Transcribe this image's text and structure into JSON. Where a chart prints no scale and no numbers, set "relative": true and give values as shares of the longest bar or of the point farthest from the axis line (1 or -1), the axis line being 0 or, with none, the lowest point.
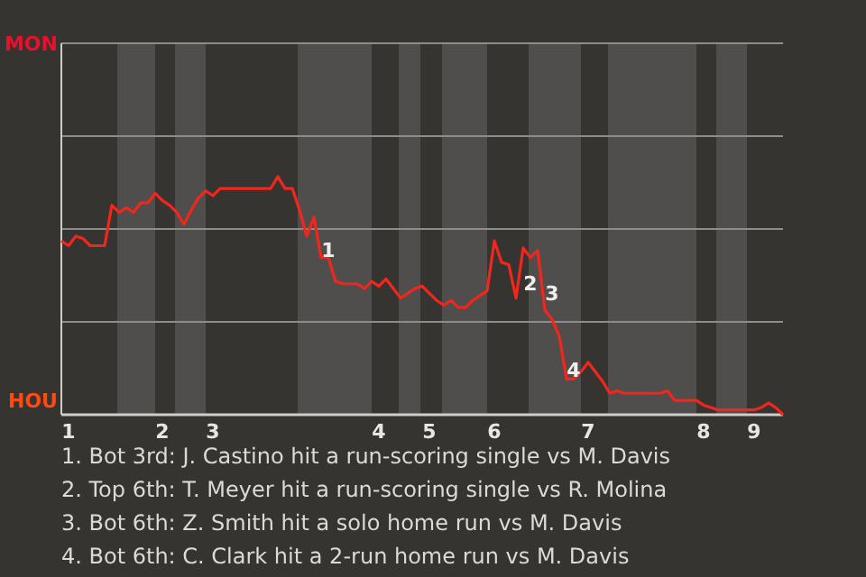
{
  "chart_data": {
    "type": "line",
    "relative": true,
    "categories": [
      null,
      "1",
      null,
      null,
      null,
      null,
      null,
      null,
      null,
      null,
      null,
      null,
      null,
      null,
      "2",
      null,
      null,
      null,
      null,
      null,
      null,
      "3",
      null,
      null,
      null,
      null,
      null,
      null,
      null,
      null,
      null,
      null,
      null,
      null,
      null,
      null,
      null,
      null,
      null,
      null,
      null,
      null,
      null,
      null,
      "4",
      null,
      null,
      null,
      null,
      null,
      null,
      "5",
      null,
      null,
      null,
      null,
      null,
      null,
      null,
      null,
      "6",
      null,
      null,
      null,
      null,
      null,
      null,
      null,
      null,
      null,
      null,
      null,
      null,
      "7",
      null,
      null,
      null,
      null,
      null,
      null,
      null,
      null,
      null,
      null,
      null,
      null,
      null,
      null,
      null,
      "8",
      null,
      null,
      null,
      null,
      null,
      null,
      "9",
      null,
      null,
      null,
      null
    ],
    "marker": "none",
    "line_style": "solid",
    "ref_lines": [
      {
        "axis": "y",
        "value": 1.17,
        "color": "#8f8d8a"
      },
      {
        "axis": "y",
        "value": 0.78,
        "color": "#8f8d8a"
      },
      {
        "axis": "y",
        "value": 0.39,
        "color": "#8f8d8a"
      }
    ],
    "series": [
      {
        "color": "#f2261c",
        "values": [
          0.73,
          0.71,
          0.75,
          0.74,
          0.71,
          0.71,
          0.71,
          0.88,
          0.85,
          0.87,
          0.85,
          0.89,
          0.89,
          0.93,
          0.9,
          0.88,
          0.85,
          0.8,
          0.86,
          0.91,
          0.94,
          0.92,
          0.95,
          0.95,
          0.95,
          0.95,
          0.95,
          0.95,
          0.95,
          0.95,
          1,
          0.95,
          0.95,
          0.86,
          0.75,
          0.83,
          0.66,
          0.66,
          0.56,
          0.55,
          0.55,
          0.55,
          0.53,
          0.56,
          0.54,
          0.57,
          0.53,
          0.49,
          0.51,
          0.53,
          0.54,
          0.51,
          0.48,
          0.46,
          0.48,
          0.45,
          0.45,
          0.48,
          0.5,
          0.52,
          0.73,
          0.64,
          0.63,
          0.49,
          0.7,
          0.66,
          0.69,
          0.44,
          0.4,
          0.33,
          0.15,
          0.15,
          0.18,
          0.22,
          0.18,
          0.14,
          0.09,
          0.1,
          0.09,
          0.09,
          0.09,
          0.09,
          0.09,
          0.09,
          0.1,
          0.06,
          0.06,
          0.06,
          0.06,
          0.04,
          0.03,
          0.02,
          0.02,
          0.02,
          0.02,
          0.02,
          0.02,
          0.03,
          0.05,
          0.03,
          0
        ]
      }
    ],
    "annotations": [
      "MON",
      "HOU",
      "1",
      "2",
      "3",
      "4",
      "1. Bot 3rd: J. Castino hit a run-scoring single vs M. Davis",
      "2. Top 6th: T. Meyer hit a run-scoring single vs R. Molina",
      "3. Bot 6th: Z. Smith hit a solo home run vs M. Davis",
      "4. Bot 6th: C. Clark hit a 2-run home run vs M. Davis"
    ]
  }
}
